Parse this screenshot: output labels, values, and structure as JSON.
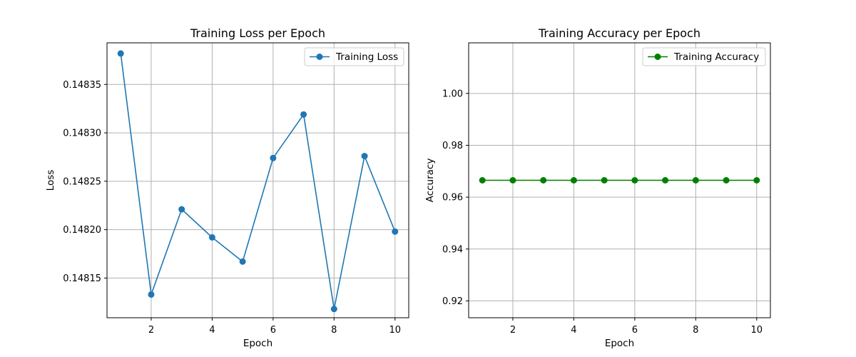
{
  "chart_data": [
    {
      "type": "line",
      "title": "Training Loss per Epoch",
      "xlabel": "Epoch",
      "ylabel": "Loss",
      "x": [
        1,
        2,
        3,
        4,
        5,
        6,
        7,
        8,
        9,
        10
      ],
      "series": [
        {
          "name": "Training Loss",
          "color": "#1f77b4",
          "marker": "circle",
          "values": [
            0.148382,
            0.148133,
            0.148221,
            0.148192,
            0.148167,
            0.148274,
            0.148319,
            0.148118,
            0.148276,
            0.148198
          ]
        }
      ],
      "xlim": [
        0.55,
        10.45
      ],
      "ylim": [
        0.148109,
        0.148393
      ],
      "xticks": [
        2,
        4,
        6,
        8,
        10
      ],
      "xtick_labels": [
        "2",
        "4",
        "6",
        "8",
        "10"
      ],
      "yticks": [
        0.14815,
        0.1482,
        0.14825,
        0.1483,
        0.14835
      ],
      "ytick_labels": [
        "0.14815",
        "0.14820",
        "0.14825",
        "0.14830",
        "0.14835"
      ],
      "grid": true,
      "legend_position": "top-right"
    },
    {
      "type": "line",
      "title": "Training Accuracy per Epoch",
      "xlabel": "Epoch",
      "ylabel": "Accuracy",
      "x": [
        1,
        2,
        3,
        4,
        5,
        6,
        7,
        8,
        9,
        10
      ],
      "series": [
        {
          "name": "Training Accuracy",
          "color": "#008000",
          "marker": "circle",
          "values": [
            0.9665,
            0.9665,
            0.9665,
            0.9665,
            0.9665,
            0.9665,
            0.9665,
            0.9665,
            0.9665,
            0.9665
          ]
        }
      ],
      "xlim": [
        0.55,
        10.45
      ],
      "ylim": [
        0.9135,
        1.0195
      ],
      "xticks": [
        2,
        4,
        6,
        8,
        10
      ],
      "xtick_labels": [
        "2",
        "4",
        "6",
        "8",
        "10"
      ],
      "yticks": [
        0.92,
        0.94,
        0.96,
        0.98,
        1.0
      ],
      "ytick_labels": [
        "0.92",
        "0.94",
        "0.96",
        "0.98",
        "1.00"
      ],
      "grid": true,
      "legend_position": "top-right"
    }
  ]
}
